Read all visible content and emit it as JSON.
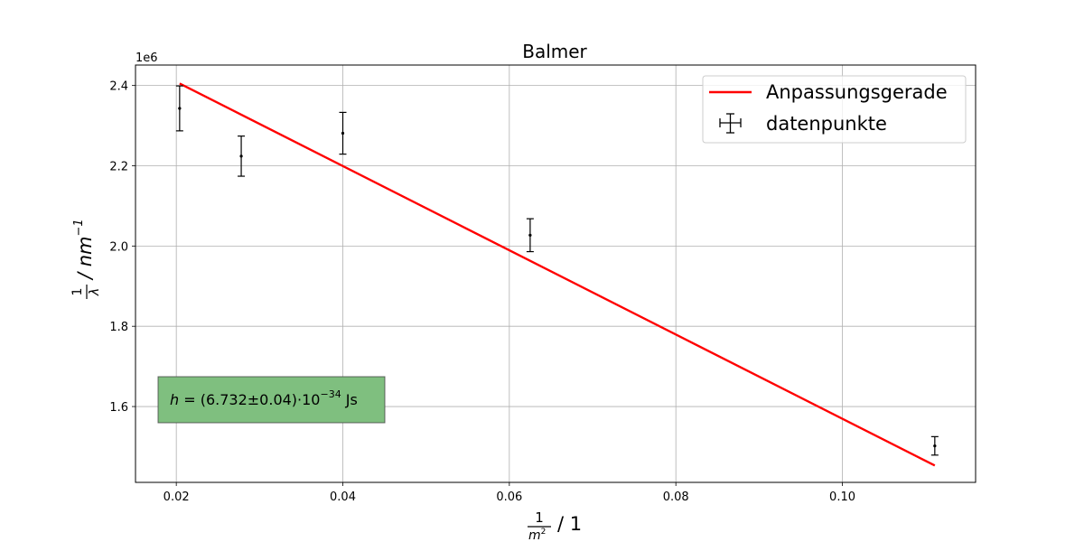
{
  "chart_data": {
    "type": "scatter",
    "title": "Balmer",
    "xlabel": {
      "frac_num": "1",
      "frac_den_base": "m",
      "frac_den_exp": "2",
      "unit": "/ 1"
    },
    "ylabel": {
      "frac_num": "1",
      "frac_den": "λ",
      "unit_main": "/ nm",
      "unit_exp": "−1"
    },
    "xlim": [
      0.0151,
      0.116
    ],
    "ylim": [
      1.411,
      2.451
    ],
    "y_offset_text": "1e6",
    "y_scale_factor": 1000000,
    "x_ticks": [
      0.02,
      0.04,
      0.06,
      0.08,
      0.1
    ],
    "x_tick_labels": [
      "0.02",
      "0.04",
      "0.06",
      "0.08",
      "0.10"
    ],
    "y_ticks": [
      1.6,
      1.8,
      2.0,
      2.2,
      2.4
    ],
    "y_tick_labels": [
      "1.6",
      "1.8",
      "2.0",
      "2.2",
      "2.4"
    ],
    "grid": true,
    "legend_position": "top-right",
    "series": [
      {
        "name": "Anpassungsgerade",
        "kind": "line",
        "color": "#ff0000",
        "x": [
          0.0204,
          0.1111
        ],
        "y": [
          2.405,
          1.453
        ]
      },
      {
        "name": "datenpunkte",
        "kind": "errorbar",
        "color": "#000000",
        "points": [
          {
            "x": 0.0204,
            "y": 2.343,
            "yerr": 0.056
          },
          {
            "x": 0.0278,
            "y": 2.224,
            "yerr": 0.05
          },
          {
            "x": 0.04,
            "y": 2.281,
            "yerr": 0.052
          },
          {
            "x": 0.0625,
            "y": 2.027,
            "yerr": 0.041
          },
          {
            "x": 0.1111,
            "y": 1.502,
            "yerr": 0.023
          }
        ]
      }
    ],
    "annotation": {
      "symbol": "h",
      "text_main": " = (6.732±0.04)·10",
      "exponent": "−34",
      "unit": " Js",
      "box_color": "#7fbf7f"
    }
  }
}
